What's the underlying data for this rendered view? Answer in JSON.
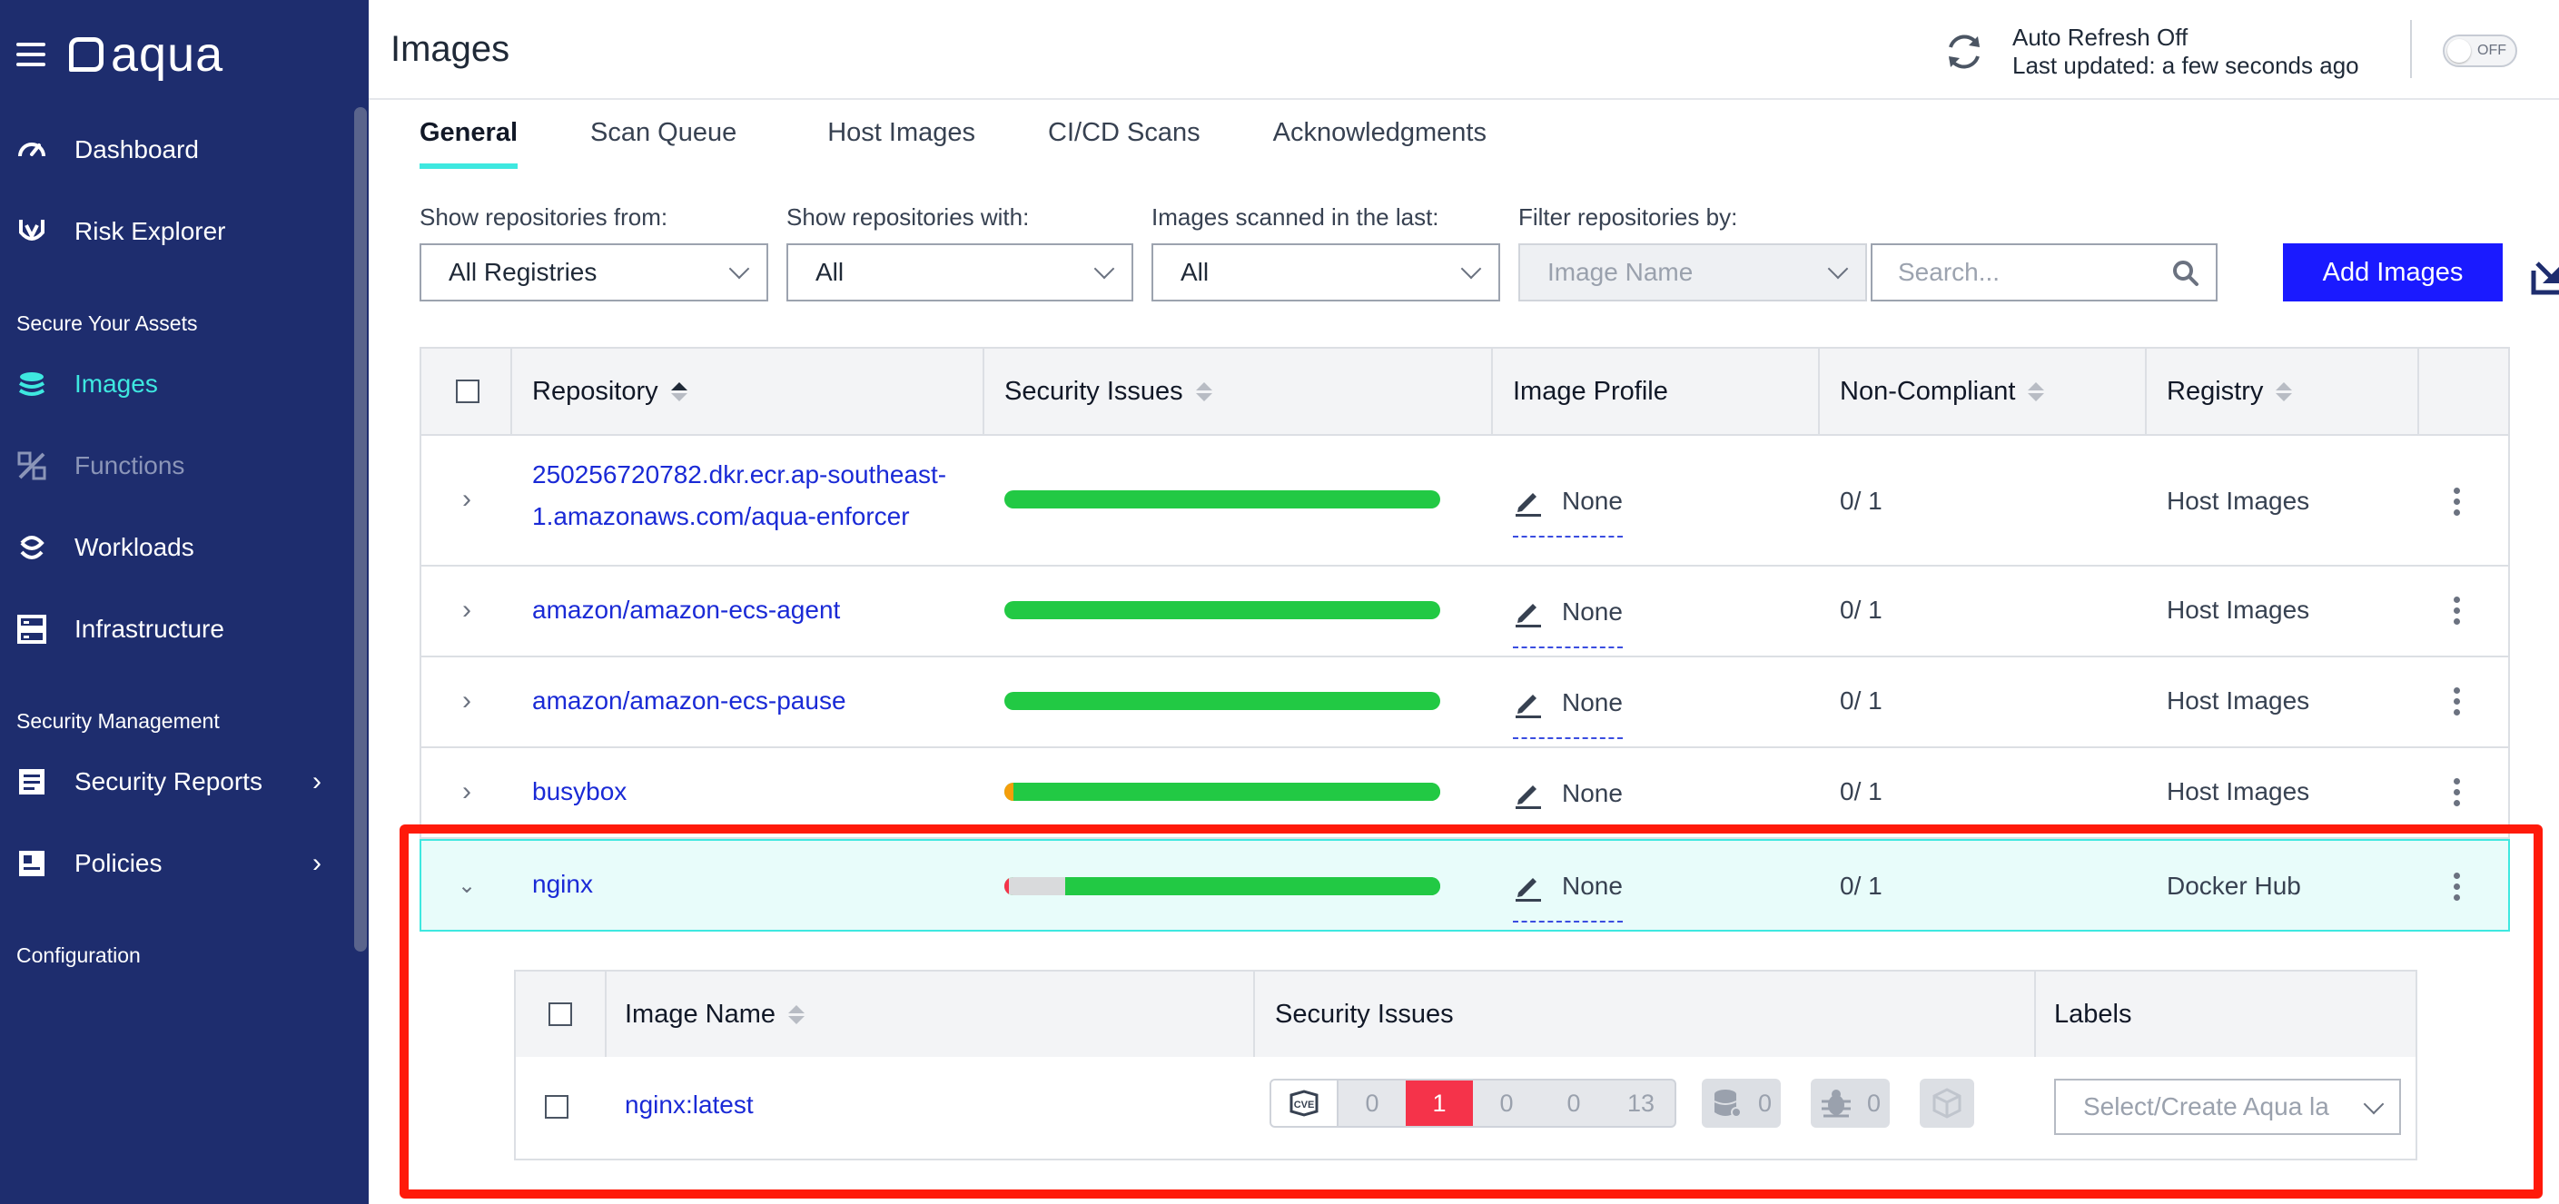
{
  "app": {
    "logo_text": "aqua"
  },
  "sidebar": {
    "items": [
      {
        "label": "Dashboard",
        "icon": "gauge-icon"
      },
      {
        "label": "Risk Explorer",
        "icon": "risk-explorer-icon"
      }
    ],
    "section1": "Secure Your Assets",
    "assets": [
      {
        "label": "Images",
        "icon": "layers-icon",
        "state": "active"
      },
      {
        "label": "Functions",
        "icon": "functions-icon",
        "state": "disabled"
      },
      {
        "label": "Workloads",
        "icon": "workloads-icon"
      },
      {
        "label": "Infrastructure",
        "icon": "infrastructure-icon"
      }
    ],
    "section2": "Security Management",
    "management": [
      {
        "label": "Security Reports",
        "icon": "reports-icon"
      },
      {
        "label": "Policies",
        "icon": "policies-icon"
      }
    ],
    "section3": "Configuration"
  },
  "header": {
    "title": "Images",
    "refresh_title": "Auto Refresh Off",
    "refresh_sub": "Last updated: a few seconds ago",
    "toggle_label": "OFF"
  },
  "tabs": [
    "General",
    "Scan Queue",
    "Host Images",
    "CI/CD Scans",
    "Acknowledgments"
  ],
  "filters": {
    "repos_from_label": "Show repositories from:",
    "repos_from_value": "All Registries",
    "repos_with_label": "Show repositories with:",
    "repos_with_value": "All",
    "scanned_label": "Images scanned in the last:",
    "scanned_value": "All",
    "filter_label": "Filter repositories by:",
    "filter_value": "Image Name",
    "search_placeholder": "Search...",
    "add_button": "Add Images"
  },
  "table": {
    "columns": [
      "Repository",
      "Security Issues",
      "Image Profile",
      "Non-Compliant",
      "Registry"
    ],
    "rows": [
      {
        "repo_line1": "250256720782.dkr.ecr.ap-southeast-",
        "repo_line2": "1.amazonaws.com/aqua-enforcer",
        "security": {
          "critical": 0,
          "high": 0,
          "ok": 1.0
        },
        "profile": "None",
        "non_compliant": "0/ 1",
        "registry": "Host Images"
      },
      {
        "repo_line1": "amazon/amazon-ecs-agent",
        "repo_line2": "",
        "security": {
          "critical": 0,
          "high": 0,
          "ok": 1.0
        },
        "profile": "None",
        "non_compliant": "0/ 1",
        "registry": "Host Images"
      },
      {
        "repo_line1": "amazon/amazon-ecs-pause",
        "repo_line2": "",
        "security": {
          "critical": 0,
          "high": 0,
          "ok": 1.0
        },
        "profile": "None",
        "non_compliant": "0/ 1",
        "registry": "Host Images"
      },
      {
        "repo_line1": "busybox",
        "repo_line2": "",
        "security": {
          "critical": 0,
          "high": 0.02,
          "ok": 0.98
        },
        "profile": "None",
        "non_compliant": "0/ 1",
        "registry": "Host Images"
      },
      {
        "repo_line1": "nginx",
        "repo_line2": "",
        "security": {
          "critical": 0.01,
          "high": 0.13,
          "ok": 0.86
        },
        "profile": "None",
        "non_compliant": "0/ 1",
        "registry": "Docker Hub"
      }
    ]
  },
  "subtable": {
    "columns": [
      "Image Name",
      "Security Issues",
      "Labels"
    ],
    "image_name": "nginx:latest",
    "vuln_counts": [
      "0",
      "1",
      "0",
      "0",
      "13"
    ],
    "malware_count": "0",
    "bug_count": "0",
    "labels_placeholder": "Select/Create Aqua la"
  },
  "colors": {
    "sidebar_bg": "#1e2d6e",
    "accent": "#3ee8e0",
    "link": "#1a2ad6",
    "primary_button": "#1a1aff",
    "ok_bar": "#22c944",
    "critical": "#f5334a",
    "highlight_border": "#ff1a0a"
  }
}
